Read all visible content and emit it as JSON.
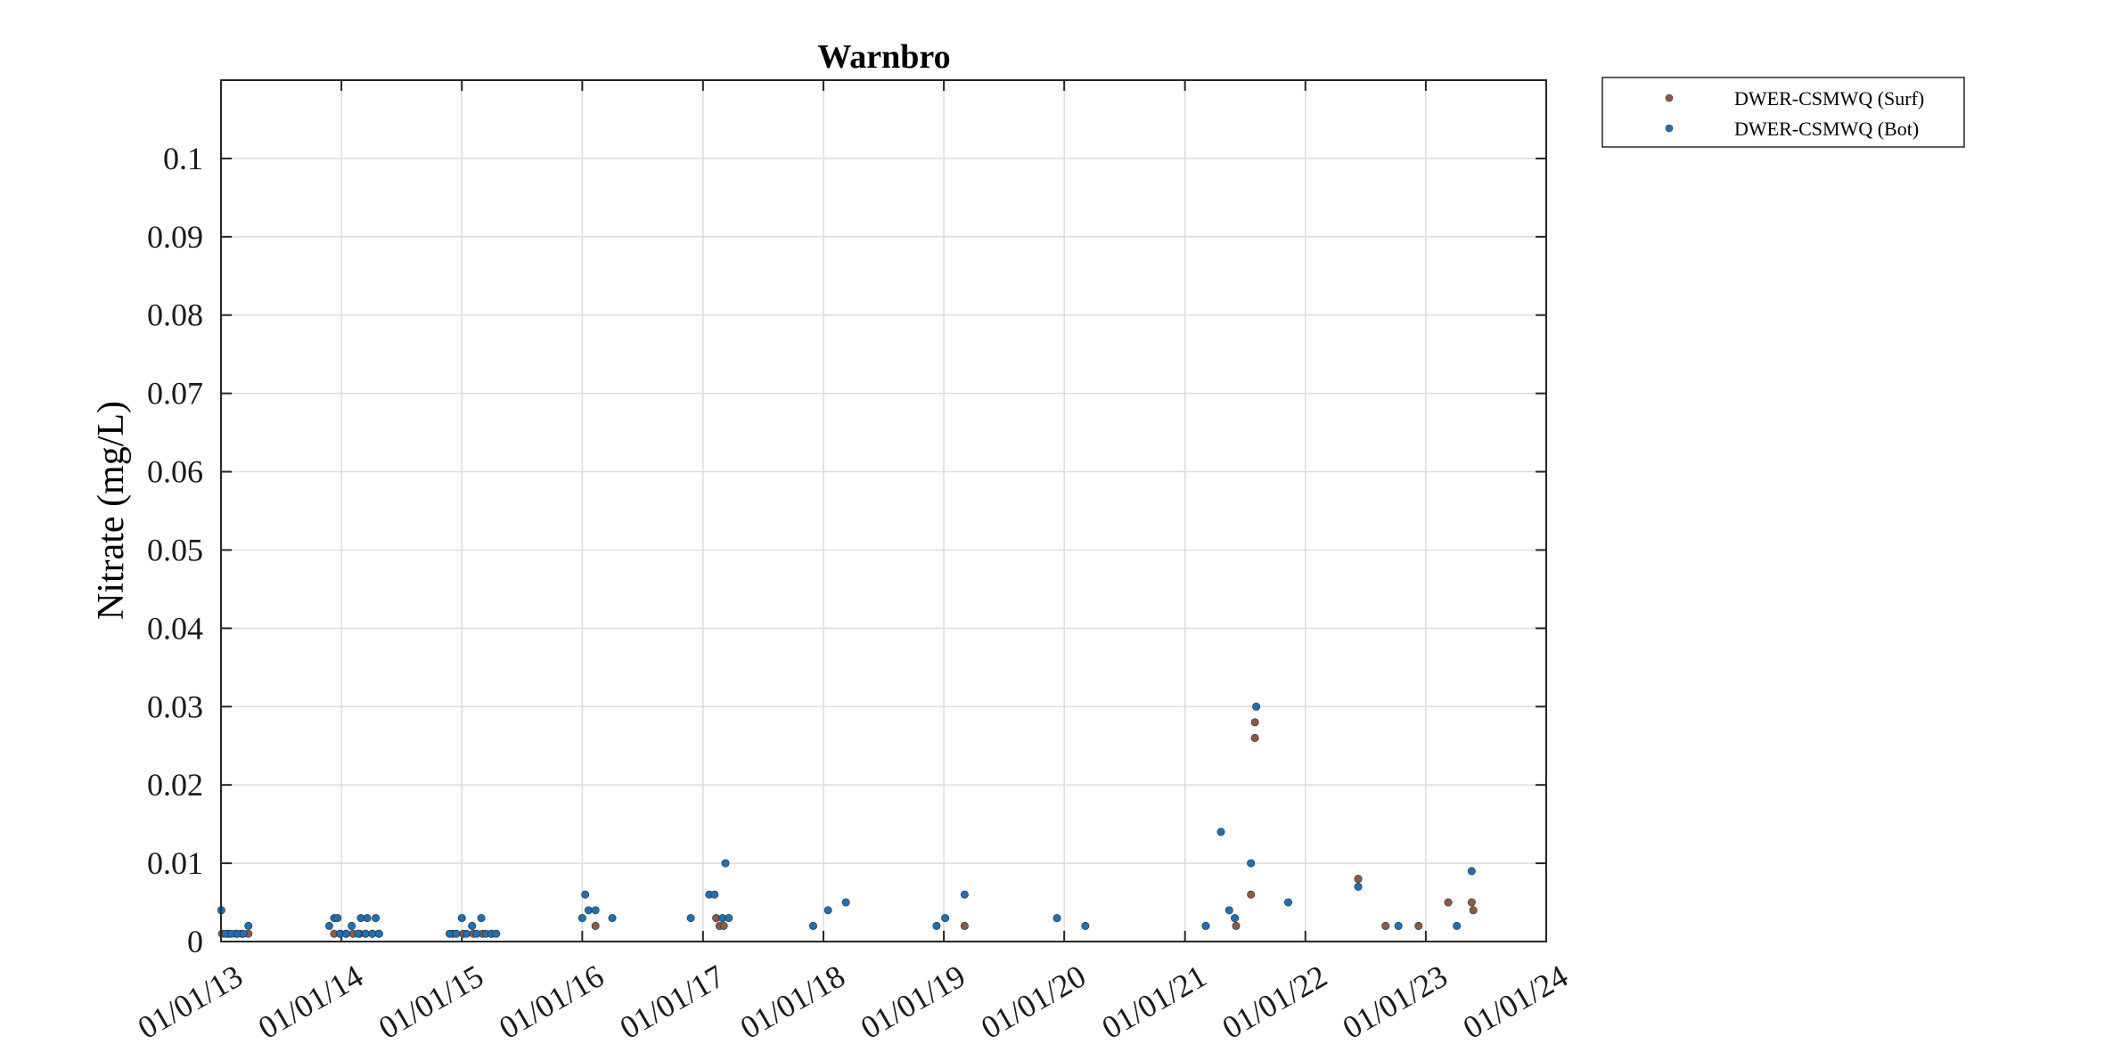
{
  "chart_data": {
    "type": "scatter",
    "title": "Warnbro",
    "xlabel": "",
    "ylabel": "Nitrate (mg/L)",
    "xlim": [
      "2013-01-01",
      "2024-01-01"
    ],
    "ylim": [
      0,
      0.11
    ],
    "x_ticks": [
      "01/01/13",
      "01/01/14",
      "01/01/15",
      "01/01/16",
      "01/01/17",
      "01/01/18",
      "01/01/19",
      "01/01/20",
      "01/01/21",
      "01/01/22",
      "01/01/23",
      "01/01/24"
    ],
    "y_ticks": [
      0,
      0.01,
      0.02,
      0.03,
      0.04,
      0.05,
      0.06,
      0.07,
      0.08,
      0.09,
      0.1
    ],
    "y_tick_labels": [
      "0",
      "0.01",
      "0.02",
      "0.03",
      "0.04",
      "0.05",
      "0.06",
      "0.07",
      "0.08",
      "0.09",
      "0.1"
    ],
    "grid": true,
    "legend_position": "outside-top-right",
    "series": [
      {
        "name": "DWER-CSMWQ (Surf)",
        "color": "#8c5a45",
        "points": [
          {
            "x": "2013-01-04",
            "y": 0.001
          },
          {
            "x": "2013-01-25",
            "y": 0.001
          },
          {
            "x": "2013-02-15",
            "y": 0.001
          },
          {
            "x": "2013-03-05",
            "y": 0.001
          },
          {
            "x": "2013-03-25",
            "y": 0.001
          },
          {
            "x": "2013-12-10",
            "y": 0.001
          },
          {
            "x": "2013-12-28",
            "y": 0.001
          },
          {
            "x": "2014-01-15",
            "y": 0.001
          },
          {
            "x": "2014-02-05",
            "y": 0.001
          },
          {
            "x": "2014-02-25",
            "y": 0.001
          },
          {
            "x": "2014-03-15",
            "y": 0.001
          },
          {
            "x": "2014-04-05",
            "y": 0.001
          },
          {
            "x": "2014-04-25",
            "y": 0.001
          },
          {
            "x": "2014-12-05",
            "y": 0.001
          },
          {
            "x": "2015-01-05",
            "y": 0.001
          },
          {
            "x": "2015-02-05",
            "y": 0.001
          },
          {
            "x": "2015-03-05",
            "y": 0.001
          },
          {
            "x": "2015-04-01",
            "y": 0.001
          },
          {
            "x": "2016-02-10",
            "y": 0.002
          },
          {
            "x": "2017-02-10",
            "y": 0.003
          },
          {
            "x": "2017-02-20",
            "y": 0.002
          },
          {
            "x": "2017-03-05",
            "y": 0.002
          },
          {
            "x": "2019-03-05",
            "y": 0.002
          },
          {
            "x": "2021-06-05",
            "y": 0.002
          },
          {
            "x": "2021-07-20",
            "y": 0.006
          },
          {
            "x": "2021-08-01",
            "y": 0.028
          },
          {
            "x": "2021-08-01",
            "y": 0.026
          },
          {
            "x": "2022-06-10",
            "y": 0.008
          },
          {
            "x": "2022-09-01",
            "y": 0.002
          },
          {
            "x": "2022-12-10",
            "y": 0.002
          },
          {
            "x": "2023-03-10",
            "y": 0.005
          },
          {
            "x": "2023-05-20",
            "y": 0.005
          },
          {
            "x": "2023-05-25",
            "y": 0.004
          }
        ]
      },
      {
        "name": "DWER-CSMWQ (Bot)",
        "color": "#1f6fb4",
        "points": [
          {
            "x": "2013-01-02",
            "y": 0.004
          },
          {
            "x": "2013-01-15",
            "y": 0.001
          },
          {
            "x": "2013-02-01",
            "y": 0.001
          },
          {
            "x": "2013-02-20",
            "y": 0.001
          },
          {
            "x": "2013-03-10",
            "y": 0.001
          },
          {
            "x": "2013-03-25",
            "y": 0.002
          },
          {
            "x": "2013-11-25",
            "y": 0.002
          },
          {
            "x": "2013-12-10",
            "y": 0.003
          },
          {
            "x": "2013-12-20",
            "y": 0.003
          },
          {
            "x": "2013-12-28",
            "y": 0.001
          },
          {
            "x": "2014-01-15",
            "y": 0.001
          },
          {
            "x": "2014-02-01",
            "y": 0.002
          },
          {
            "x": "2014-02-20",
            "y": 0.001
          },
          {
            "x": "2014-03-01",
            "y": 0.003
          },
          {
            "x": "2014-03-15",
            "y": 0.001
          },
          {
            "x": "2014-03-20",
            "y": 0.003
          },
          {
            "x": "2014-04-05",
            "y": 0.001
          },
          {
            "x": "2014-04-15",
            "y": 0.003
          },
          {
            "x": "2014-04-25",
            "y": 0.001
          },
          {
            "x": "2014-11-25",
            "y": 0.001
          },
          {
            "x": "2014-12-15",
            "y": 0.001
          },
          {
            "x": "2015-01-01",
            "y": 0.003
          },
          {
            "x": "2015-01-15",
            "y": 0.001
          },
          {
            "x": "2015-02-01",
            "y": 0.002
          },
          {
            "x": "2015-02-15",
            "y": 0.001
          },
          {
            "x": "2015-03-01",
            "y": 0.003
          },
          {
            "x": "2015-03-15",
            "y": 0.001
          },
          {
            "x": "2015-04-01",
            "y": 0.001
          },
          {
            "x": "2015-04-15",
            "y": 0.001
          },
          {
            "x": "2016-01-01",
            "y": 0.003
          },
          {
            "x": "2016-01-10",
            "y": 0.006
          },
          {
            "x": "2016-01-20",
            "y": 0.004
          },
          {
            "x": "2016-02-10",
            "y": 0.004
          },
          {
            "x": "2016-04-01",
            "y": 0.003
          },
          {
            "x": "2016-11-25",
            "y": 0.003
          },
          {
            "x": "2017-01-20",
            "y": 0.006
          },
          {
            "x": "2017-02-05",
            "y": 0.006
          },
          {
            "x": "2017-03-01",
            "y": 0.003
          },
          {
            "x": "2017-03-10",
            "y": 0.01
          },
          {
            "x": "2017-03-20",
            "y": 0.003
          },
          {
            "x": "2017-12-01",
            "y": 0.002
          },
          {
            "x": "2018-01-15",
            "y": 0.004
          },
          {
            "x": "2018-03-10",
            "y": 0.005
          },
          {
            "x": "2018-12-10",
            "y": 0.002
          },
          {
            "x": "2019-01-05",
            "y": 0.003
          },
          {
            "x": "2019-03-05",
            "y": 0.006
          },
          {
            "x": "2019-12-10",
            "y": 0.003
          },
          {
            "x": "2020-03-05",
            "y": 0.002
          },
          {
            "x": "2021-03-05",
            "y": 0.002
          },
          {
            "x": "2021-04-20",
            "y": 0.014
          },
          {
            "x": "2021-05-15",
            "y": 0.004
          },
          {
            "x": "2021-06-01",
            "y": 0.003
          },
          {
            "x": "2021-07-20",
            "y": 0.01
          },
          {
            "x": "2021-08-05",
            "y": 0.03
          },
          {
            "x": "2021-11-10",
            "y": 0.005
          },
          {
            "x": "2022-06-10",
            "y": 0.007
          },
          {
            "x": "2022-10-10",
            "y": 0.002
          },
          {
            "x": "2023-04-05",
            "y": 0.002
          },
          {
            "x": "2023-05-20",
            "y": 0.009
          }
        ]
      }
    ]
  }
}
